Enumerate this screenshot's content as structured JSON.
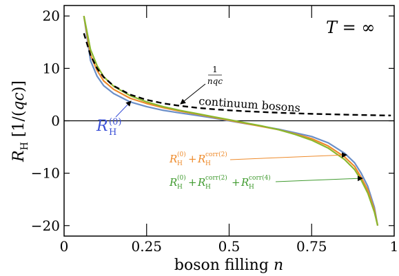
{
  "chart_data": {
    "type": "line",
    "xlabel": "boson filling n",
    "ylabel": "R_H [1/(qc)]",
    "xlim": [
      0,
      1
    ],
    "ylim": [
      -22,
      22
    ],
    "x_ticks": [
      0,
      0.25,
      0.5,
      0.75,
      1
    ],
    "x_tick_labels": [
      "0",
      "0.25",
      "0.5",
      "0.75",
      "1"
    ],
    "y_ticks": [
      -20,
      -10,
      0,
      10,
      20
    ],
    "y_tick_labels": [
      "−20",
      "−10",
      "0",
      "10",
      "20"
    ],
    "hline": 0,
    "annotations": {
      "temperature": "T = ∞",
      "continuum_fraction": "1/(nqc)",
      "continuum_label": "continuum bosons",
      "r0": "R_H^(0)",
      "r0_corr2": "R_H^(0) + R_H^corr(2)",
      "r0_corr2_corr4": "R_H^(0) + R_H^corr(2) + R_H^corr(4)"
    },
    "series": [
      {
        "name": "continuum bosons",
        "style": "dashed",
        "color": "#000000",
        "x": [
          0.06,
          0.08,
          0.1,
          0.12,
          0.15,
          0.2,
          0.25,
          0.3,
          0.35,
          0.4,
          0.45,
          0.5,
          0.55,
          0.6,
          0.65,
          0.7,
          0.75,
          0.8,
          0.85,
          0.9,
          0.95,
          0.99
        ],
        "y": [
          16.7,
          12.5,
          10.0,
          8.33,
          6.67,
          5.0,
          4.0,
          3.33,
          2.86,
          2.5,
          2.22,
          2.0,
          1.82,
          1.67,
          1.54,
          1.43,
          1.33,
          1.25,
          1.18,
          1.11,
          1.05,
          1.01
        ]
      },
      {
        "name": "R_H^(0)",
        "color": "#6b8fc8",
        "x": [
          0.06,
          0.08,
          0.1,
          0.12,
          0.15,
          0.2,
          0.25,
          0.3,
          0.35,
          0.4,
          0.45,
          0.5,
          0.55,
          0.6,
          0.65,
          0.7,
          0.75,
          0.8,
          0.85,
          0.88,
          0.9,
          0.92,
          0.94,
          0.95
        ],
        "y": [
          20.0,
          11.5,
          8.5,
          6.7,
          5.2,
          3.6,
          2.7,
          2.0,
          1.5,
          1.05,
          0.55,
          0.0,
          -0.55,
          -1.05,
          -1.6,
          -2.3,
          -3.0,
          -4.2,
          -6.2,
          -8.0,
          -10.0,
          -12.5,
          -16.5,
          -20.0
        ]
      },
      {
        "name": "R_H^(0) + R_H^corr(2)",
        "color": "#ee8a2a",
        "x": [
          0.06,
          0.08,
          0.1,
          0.12,
          0.15,
          0.2,
          0.25,
          0.3,
          0.35,
          0.4,
          0.45,
          0.5,
          0.55,
          0.6,
          0.65,
          0.7,
          0.75,
          0.8,
          0.85,
          0.88,
          0.9,
          0.92,
          0.94,
          0.95
        ],
        "y": [
          20.0,
          12.6,
          9.6,
          7.6,
          6.0,
          4.3,
          3.3,
          2.5,
          1.85,
          1.3,
          0.7,
          0.1,
          -0.5,
          -1.1,
          -1.7,
          -2.5,
          -3.4,
          -4.8,
          -6.9,
          -8.7,
          -10.8,
          -13.2,
          -17.0,
          -20.0
        ]
      },
      {
        "name": "R_H^(0) + R_H^corr(2) + R_H^corr(4)",
        "color": "#8ab82e",
        "x": [
          0.06,
          0.08,
          0.1,
          0.12,
          0.15,
          0.2,
          0.25,
          0.3,
          0.35,
          0.4,
          0.45,
          0.5,
          0.55,
          0.6,
          0.65,
          0.7,
          0.75,
          0.8,
          0.85,
          0.88,
          0.9,
          0.92,
          0.94,
          0.95
        ],
        "y": [
          20.0,
          13.6,
          10.5,
          8.4,
          6.6,
          4.8,
          3.6,
          2.7,
          2.0,
          1.4,
          0.8,
          0.2,
          -0.4,
          -1.0,
          -1.7,
          -2.6,
          -3.7,
          -5.2,
          -7.4,
          -9.3,
          -11.3,
          -13.8,
          -17.4,
          -20.0
        ]
      }
    ]
  }
}
